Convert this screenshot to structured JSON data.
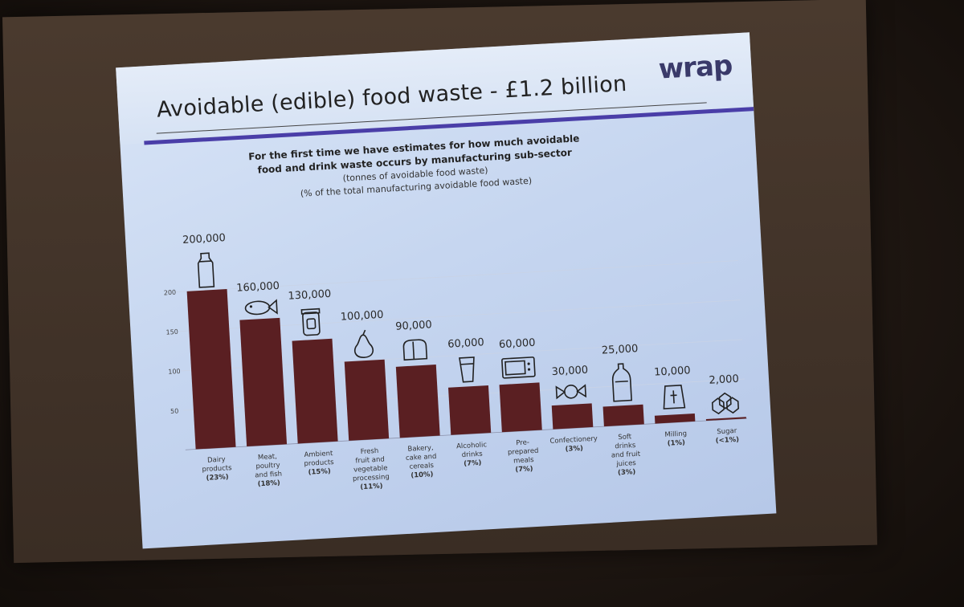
{
  "slide": {
    "title": "Avoidable (edible)  food waste - £1.2 billion",
    "logo": "wrap",
    "subtitle_line1": "For the first time we have estimates for how much avoidable",
    "subtitle_line2": "food and drink waste occurs by manufacturing sub-sector",
    "subtitle_line3": "(tonnes of avoidable food waste)",
    "subtitle_line4": "(% of the total manufacturing avoidable food waste)"
  },
  "chart_data": {
    "type": "bar",
    "title": "Avoidable (edible)  food waste - £1.2 billion",
    "ylabel": "",
    "xlabel": "",
    "yticks": [
      50,
      100,
      150,
      200
    ],
    "ylim": [
      0,
      200
    ],
    "grid": true,
    "categories": [
      {
        "label": [
          "Dairy",
          "products",
          "(23%)"
        ],
        "value": 200000,
        "value_label": "200,000",
        "icon": "milk-bottle-icon"
      },
      {
        "label": [
          "Meat,",
          "poultry",
          "and fish",
          "(18%)"
        ],
        "value": 160000,
        "value_label": "160,000",
        "icon": "fish-icon"
      },
      {
        "label": [
          "Ambient",
          "products",
          "(15%)"
        ],
        "value": 130000,
        "value_label": "130,000",
        "icon": "jar-icon"
      },
      {
        "label": [
          "Fresh",
          "fruit and",
          "vegetable",
          "processing",
          "(11%)"
        ],
        "value": 100000,
        "value_label": "100,000",
        "icon": "pear-icon"
      },
      {
        "label": [
          "Bakery,",
          "cake and",
          "cereals",
          "(10%)"
        ],
        "value": 90000,
        "value_label": "90,000",
        "icon": "bread-icon"
      },
      {
        "label": [
          "Alcoholic",
          "drinks",
          "(7%)"
        ],
        "value": 60000,
        "value_label": "60,000",
        "icon": "glass-icon"
      },
      {
        "label": [
          "Pre-",
          "prepared",
          "meals",
          "(7%)"
        ],
        "value": 60000,
        "value_label": "60,000",
        "icon": "microwave-icon"
      },
      {
        "label": [
          "Confectionery",
          "(3%)"
        ],
        "value": 30000,
        "value_label": "30,000",
        "icon": "candy-icon"
      },
      {
        "label": [
          "Soft",
          "drinks",
          "and fruit",
          "juices",
          "(3%)"
        ],
        "value": 25000,
        "value_label": "25,000",
        "icon": "soda-bottle-icon"
      },
      {
        "label": [
          "Milling",
          "(1%)"
        ],
        "value": 10000,
        "value_label": "10,000",
        "icon": "flour-sack-icon"
      },
      {
        "label": [
          "Sugar",
          "(<1%)"
        ],
        "value": 2000,
        "value_label": "2,000",
        "icon": "sugar-cubes-icon"
      }
    ]
  }
}
